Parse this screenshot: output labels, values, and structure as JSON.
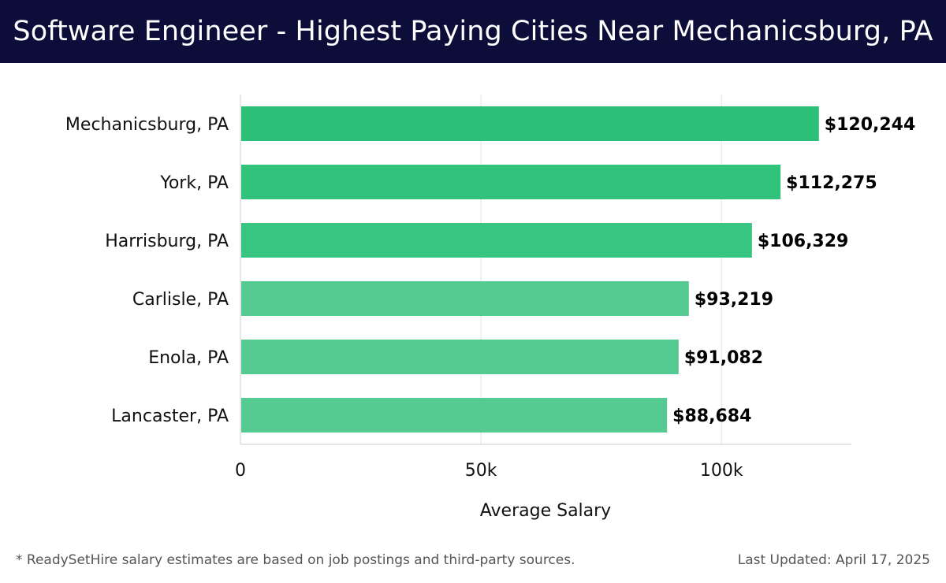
{
  "header": {
    "title": "Software Engineer - Highest Paying Cities Near Mechanicsburg, PA"
  },
  "chart_data": {
    "type": "bar",
    "orientation": "horizontal",
    "categories": [
      "Mechanicsburg, PA",
      "York, PA",
      "Harrisburg, PA",
      "Carlisle, PA",
      "Enola, PA",
      "Lancaster, PA"
    ],
    "values": [
      120244,
      112275,
      106329,
      93219,
      91082,
      88684
    ],
    "value_labels": [
      "$120,244",
      "$112,275",
      "$106,329",
      "$93,219",
      "$91,082",
      "$88,684"
    ],
    "bar_colors": [
      "#2bbf77",
      "#31c27c",
      "#38c581",
      "#55cb93",
      "#55cb93",
      "#55cb93"
    ],
    "xlabel": "Average Salary",
    "ylabel": "",
    "xlim": [
      0,
      127000
    ],
    "xticks": [
      0,
      50000,
      100000
    ],
    "xtick_labels": [
      "0",
      "50k",
      "100k"
    ],
    "grid": true
  },
  "footer": {
    "note": "* ReadySetHire salary estimates are based on job postings and third-party sources.",
    "updated": "Last Updated: April 17, 2025"
  }
}
